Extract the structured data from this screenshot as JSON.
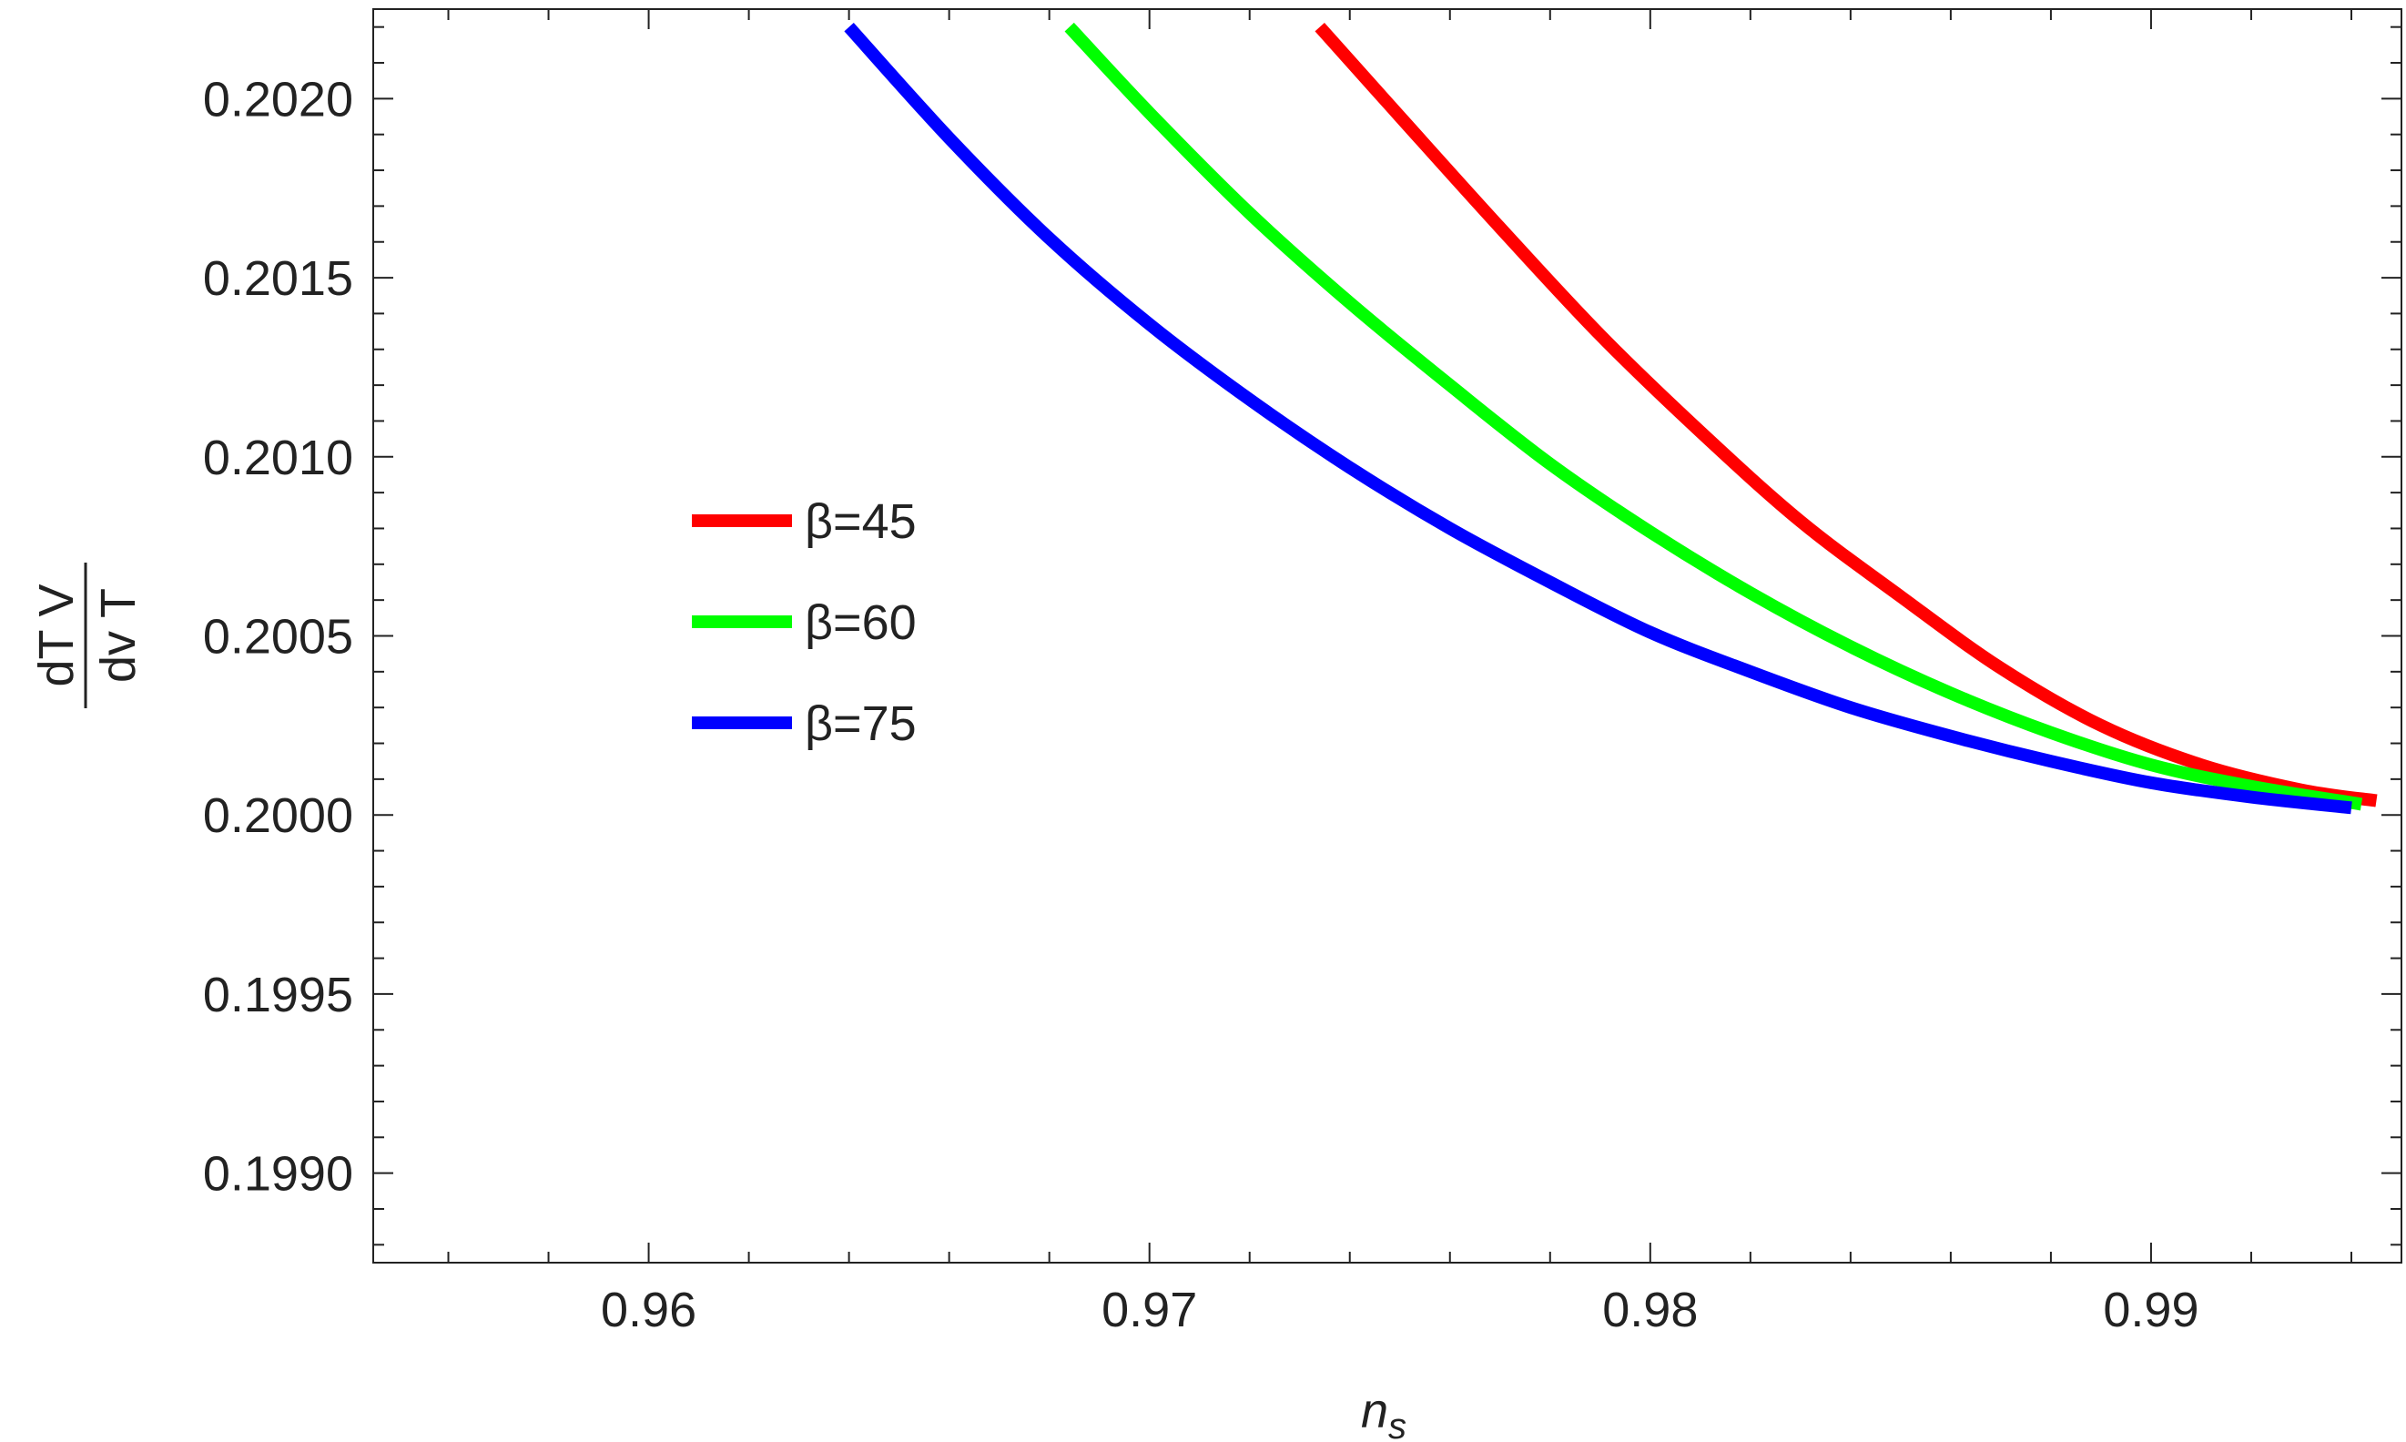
{
  "chart_data": {
    "type": "line",
    "xlabel": "n",
    "xlabel_sub": "s",
    "ylabel_num": "dT V",
    "ylabel_den": "dv T",
    "xlim": [
      0.9545,
      0.995
    ],
    "ylim": [
      0.19875,
      0.20225
    ],
    "xticks_major": [
      0.96,
      0.97,
      0.98,
      0.99
    ],
    "xtick_labels": [
      "0.96",
      "0.97",
      "0.98",
      "0.99"
    ],
    "yticks_major": [
      0.199,
      0.1995,
      0.2,
      0.2005,
      0.201,
      0.2015,
      0.202
    ],
    "ytick_labels": [
      "0.1990",
      "0.1995",
      "0.2000",
      "0.2005",
      "0.2010",
      "0.2015",
      "0.2020"
    ],
    "grid": false,
    "legend_position": "center-left",
    "series": [
      {
        "name": "β=45",
        "color": "#ff0000",
        "x": [
          0.9734,
          0.975,
          0.977,
          0.979,
          0.981,
          0.983,
          0.985,
          0.987,
          0.989,
          0.991,
          0.993,
          0.9945
        ],
        "y": [
          0.2022,
          0.20195,
          0.20164,
          0.20134,
          0.20107,
          0.20082,
          0.20061,
          0.20041,
          0.20025,
          0.20014,
          0.20007,
          0.20004
        ]
      },
      {
        "name": "β=60",
        "color": "#00ff00",
        "x": [
          0.9684,
          0.97,
          0.972,
          0.974,
          0.976,
          0.978,
          0.98,
          0.982,
          0.984,
          0.986,
          0.988,
          0.99,
          0.992,
          0.9942
        ],
        "y": [
          0.2022,
          0.20196,
          0.20168,
          0.20143,
          0.2012,
          0.20098,
          0.20079,
          0.20062,
          0.20047,
          0.20034,
          0.20023,
          0.20014,
          0.20008,
          0.20003
        ]
      },
      {
        "name": "β=75",
        "color": "#0000ff",
        "x": [
          0.964,
          0.966,
          0.968,
          0.97,
          0.972,
          0.974,
          0.976,
          0.978,
          0.98,
          0.982,
          0.984,
          0.986,
          0.988,
          0.99,
          0.992,
          0.994
        ],
        "y": [
          0.2022,
          0.20189,
          0.20161,
          0.20137,
          0.20116,
          0.20097,
          0.2008,
          0.20065,
          0.20051,
          0.2004,
          0.2003,
          0.20022,
          0.20015,
          0.20009,
          0.20005,
          0.20002
        ]
      }
    ]
  }
}
